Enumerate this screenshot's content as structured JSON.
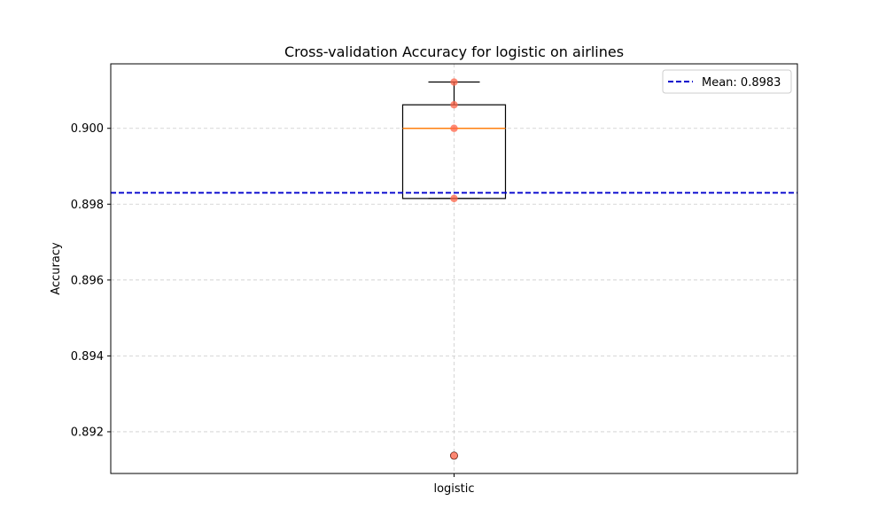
{
  "chart_data": {
    "type": "box",
    "title": "Cross-validation Accuracy for logistic on airlines",
    "xlabel": "",
    "ylabel": "Accuracy",
    "categories": [
      "logistic"
    ],
    "ylim": [
      0.8909,
      0.9017
    ],
    "yticks": [
      0.892,
      0.894,
      0.896,
      0.898,
      0.9
    ],
    "ytick_labels": [
      "0.892",
      "0.894",
      "0.896",
      "0.898",
      "0.900"
    ],
    "grid": true,
    "box": {
      "q1": 0.89815,
      "median": 0.9,
      "q3": 0.90062,
      "whisker_low": 0.89815,
      "whisker_high": 0.90122,
      "outliers": [
        0.89137
      ]
    },
    "points": [
      0.90122,
      0.90062,
      0.9,
      0.89815,
      0.89137
    ],
    "mean": {
      "value": 0.8983,
      "label": "Mean: 0.8983"
    },
    "legend": {
      "placement": "top-right",
      "entries": [
        "Mean: 0.8983"
      ]
    },
    "colors": {
      "box": "#000000",
      "median": "#ff7f0e",
      "points": "#ff6347",
      "mean_line": "#0000cc",
      "grid": "#cccccc"
    }
  }
}
